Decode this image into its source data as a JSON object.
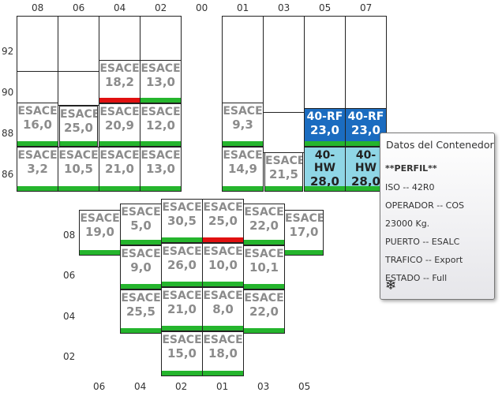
{
  "upper_bay": {
    "row_labels": [
      "08",
      "06",
      "04",
      "02",
      "00",
      "01",
      "03",
      "05",
      "07"
    ],
    "tier_labels": [
      "92",
      "90",
      "88",
      "86"
    ],
    "port_side": [
      {
        "name": "container-r08-t88",
        "code": "ESACE",
        "weight": "16,0",
        "status": "green"
      },
      {
        "name": "container-r08-t86",
        "code": "ESACE",
        "weight": "3,2",
        "status": "green"
      },
      {
        "name": "container-r06-t88",
        "code": "ESACE",
        "weight": "25,0",
        "status": "green"
      },
      {
        "name": "container-r06-t86",
        "code": "ESACE",
        "weight": "10,5",
        "status": "green"
      },
      {
        "name": "container-r04-t90",
        "code": "ESACE",
        "weight": "18,2",
        "status": "red"
      },
      {
        "name": "container-r04-t88",
        "code": "ESACE",
        "weight": "20,9",
        "status": "green"
      },
      {
        "name": "container-r04-t86",
        "code": "ESACE",
        "weight": "21,0",
        "status": "green"
      },
      {
        "name": "container-r02-t90",
        "code": "ESACE",
        "weight": "13,0",
        "status": "green"
      },
      {
        "name": "container-r02-t88",
        "code": "ESACE",
        "weight": "12,0",
        "status": "green"
      },
      {
        "name": "container-r02-t86",
        "code": "ESACE",
        "weight": "13,0",
        "status": "green"
      }
    ],
    "starboard_side": [
      {
        "name": "container-r01-t88",
        "code": "ESACE",
        "weight": "9,3",
        "status": "green"
      },
      {
        "name": "container-r01-t86",
        "code": "ESACE",
        "weight": "14,9",
        "status": "green"
      },
      {
        "name": "container-r03-t86",
        "code": "ESACE",
        "weight": "21,5",
        "status": "green"
      },
      {
        "name": "container-r05-t88",
        "code": "40-RF",
        "weight": "23,0",
        "status": "green",
        "type": "rf"
      },
      {
        "name": "container-r05-t86",
        "code": "40-HW",
        "weight": "28,0",
        "status": "green",
        "type": "hw"
      },
      {
        "name": "container-r07-t88",
        "code": "40-RF",
        "weight": "23,0",
        "status": "green",
        "type": "rf"
      },
      {
        "name": "container-r07-t86",
        "code": "40-HW",
        "weight": "28,0",
        "status": "green",
        "type": "hw"
      }
    ]
  },
  "lower_bay": {
    "tier_labels": [
      "08",
      "06",
      "04",
      "02"
    ],
    "row_labels": [
      "06",
      "04",
      "02",
      "01",
      "03",
      "05"
    ],
    "containers": [
      {
        "name": "hold-r06-t08",
        "code": "ESACE",
        "weight": "19,0",
        "status": "green"
      },
      {
        "name": "hold-r04-t08",
        "code": "ESACE",
        "weight": "5,0",
        "status": "green"
      },
      {
        "name": "hold-r04-t06",
        "code": "ESACE",
        "weight": "9,0",
        "status": "green"
      },
      {
        "name": "hold-r04-t04",
        "code": "ESACE",
        "weight": "25,5",
        "status": "green"
      },
      {
        "name": "hold-r02-t08",
        "code": "ESACE",
        "weight": "30,5",
        "status": "green"
      },
      {
        "name": "hold-r02-t06",
        "code": "ESACE",
        "weight": "26,0",
        "status": "green"
      },
      {
        "name": "hold-r02-t04",
        "code": "ESACE",
        "weight": "21,0",
        "status": "green"
      },
      {
        "name": "hold-r02-t02",
        "code": "ESACE",
        "weight": "15,0",
        "status": "green"
      },
      {
        "name": "hold-r01-t08",
        "code": "ESACE",
        "weight": "25,0",
        "status": "red"
      },
      {
        "name": "hold-r01-t06",
        "code": "ESACE",
        "weight": "10,0",
        "status": "green"
      },
      {
        "name": "hold-r01-t04",
        "code": "ESACE",
        "weight": "8,0",
        "status": "green"
      },
      {
        "name": "hold-r01-t02",
        "code": "ESACE",
        "weight": "18,0",
        "status": "green"
      },
      {
        "name": "hold-r03-t08",
        "code": "ESACE",
        "weight": "22,0",
        "status": "green"
      },
      {
        "name": "hold-r03-t06",
        "code": "ESACE",
        "weight": "10,1",
        "status": "green"
      },
      {
        "name": "hold-r03-t04",
        "code": "ESACE",
        "weight": "22,0",
        "status": "green"
      },
      {
        "name": "hold-r05-t08",
        "code": "ESACE",
        "weight": "17,0",
        "status": "green"
      }
    ]
  },
  "tooltip": {
    "title": "Datos del Contenedor",
    "perfil": "**PERFIL**",
    "iso": "ISO -- 42R0",
    "operador": "OPERADOR -- COS",
    "peso": "23000 Kg.",
    "puerto": "PUERTO -- ESALC",
    "trafico": "TRAFICO -- Export",
    "estado": "ESTADO -- Full",
    "icon": "snowflake-icon"
  },
  "colors": {
    "green": "#25b52d",
    "red": "#e01010",
    "reefer": "#1b6cc0",
    "high_cube": "#8fd6e6"
  }
}
